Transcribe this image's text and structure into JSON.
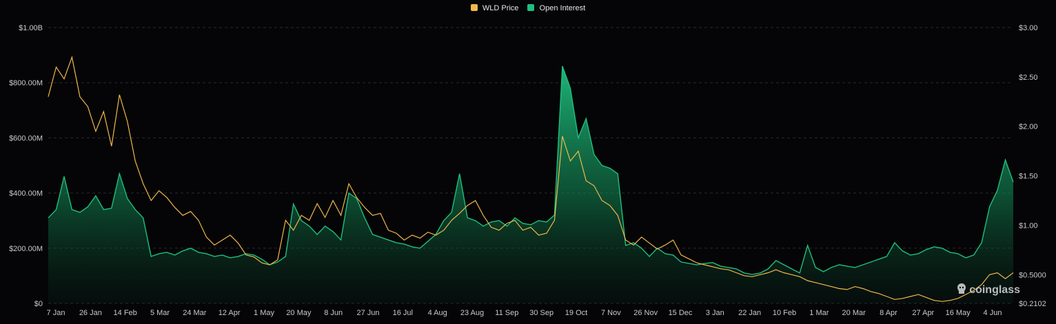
{
  "legend": {
    "price_label": "WLD Price",
    "oi_label": "Open Interest"
  },
  "watermark": {
    "text": "coinglass"
  },
  "colors": {
    "price": "#f0b94b",
    "oi": "#1fbf7f",
    "grid": "#2a2a30",
    "text": "#c9c9cc",
    "background": "#050507"
  },
  "chart_data": {
    "type": "line",
    "title": "",
    "xlabel": "",
    "ylabel_left": "",
    "ylabel_right": "",
    "x_tick_labels": [
      "7 Jan",
      "26 Jan",
      "14 Feb",
      "5 Mar",
      "24 Mar",
      "12 Apr",
      "1 May",
      "20 May",
      "8 Jun",
      "27 Jun",
      "16 Jul",
      "4 Aug",
      "23 Aug",
      "11 Sep",
      "30 Sep",
      "19 Oct",
      "7 Nov",
      "26 Nov",
      "15 Dec",
      "3 Jan",
      "22 Jan",
      "10 Feb",
      "1 Mar",
      "20 Mar",
      "8 Apr",
      "27 Apr",
      "16 May",
      "4 Jun"
    ],
    "left_axis": {
      "ylim": [
        0,
        1000000000
      ],
      "tick_values": [
        0,
        200000000,
        400000000,
        600000000,
        800000000,
        1000000000
      ],
      "tick_labels": [
        "$0",
        "$200.00M",
        "$400.00M",
        "$600.00M",
        "$800.00M",
        "$1.00B"
      ]
    },
    "right_axis": {
      "ylim": [
        0.2102,
        3.0
      ],
      "tick_values": [
        0.2102,
        0.5,
        1.0,
        1.5,
        2.0,
        2.5,
        3.0
      ],
      "tick_labels": [
        "$0.2102",
        "$0.5000",
        "$1.00",
        "$1.50",
        "$2.00",
        "$2.50",
        "$3.00"
      ]
    },
    "grid": true,
    "legend_position": "top-center",
    "series": [
      {
        "name": "WLD Price",
        "axis": "right",
        "style": "line",
        "points": [
          [
            0,
            2.3
          ],
          [
            1,
            2.6
          ],
          [
            2,
            2.48
          ],
          [
            3,
            2.7
          ],
          [
            4,
            2.3
          ],
          [
            5,
            2.2
          ],
          [
            6,
            1.95
          ],
          [
            7,
            2.15
          ],
          [
            8,
            1.8
          ],
          [
            9,
            2.32
          ],
          [
            10,
            2.05
          ],
          [
            11,
            1.65
          ],
          [
            12,
            1.42
          ],
          [
            13,
            1.25
          ],
          [
            14,
            1.35
          ],
          [
            15,
            1.28
          ],
          [
            16,
            1.18
          ],
          [
            17,
            1.1
          ],
          [
            18,
            1.14
          ],
          [
            19,
            1.05
          ],
          [
            20,
            0.88
          ],
          [
            21,
            0.8
          ],
          [
            22,
            0.85
          ],
          [
            23,
            0.9
          ],
          [
            24,
            0.82
          ],
          [
            25,
            0.7
          ],
          [
            26,
            0.68
          ],
          [
            27,
            0.62
          ],
          [
            28,
            0.6
          ],
          [
            29,
            0.65
          ],
          [
            30,
            1.05
          ],
          [
            31,
            0.95
          ],
          [
            32,
            1.1
          ],
          [
            33,
            1.05
          ],
          [
            34,
            1.22
          ],
          [
            35,
            1.08
          ],
          [
            36,
            1.25
          ],
          [
            37,
            1.1
          ],
          [
            38,
            1.42
          ],
          [
            39,
            1.28
          ],
          [
            40,
            1.18
          ],
          [
            41,
            1.1
          ],
          [
            42,
            1.12
          ],
          [
            43,
            0.95
          ],
          [
            44,
            0.92
          ],
          [
            45,
            0.85
          ],
          [
            46,
            0.9
          ],
          [
            47,
            0.87
          ],
          [
            48,
            0.93
          ],
          [
            49,
            0.9
          ],
          [
            50,
            0.95
          ],
          [
            51,
            1.05
          ],
          [
            52,
            1.12
          ],
          [
            53,
            1.2
          ],
          [
            54,
            1.25
          ],
          [
            55,
            1.1
          ],
          [
            56,
            0.98
          ],
          [
            57,
            0.95
          ],
          [
            58,
            1.02
          ],
          [
            59,
            1.05
          ],
          [
            60,
            0.95
          ],
          [
            61,
            0.98
          ],
          [
            62,
            0.9
          ],
          [
            63,
            0.92
          ],
          [
            64,
            1.05
          ],
          [
            65,
            1.9
          ],
          [
            66,
            1.65
          ],
          [
            67,
            1.75
          ],
          [
            68,
            1.45
          ],
          [
            69,
            1.4
          ],
          [
            70,
            1.25
          ],
          [
            71,
            1.2
          ],
          [
            72,
            1.1
          ],
          [
            73,
            0.85
          ],
          [
            74,
            0.8
          ],
          [
            75,
            0.88
          ],
          [
            76,
            0.82
          ],
          [
            77,
            0.76
          ],
          [
            78,
            0.8
          ],
          [
            79,
            0.85
          ],
          [
            80,
            0.7
          ],
          [
            81,
            0.66
          ],
          [
            82,
            0.62
          ],
          [
            83,
            0.6
          ],
          [
            84,
            0.58
          ],
          [
            85,
            0.56
          ],
          [
            86,
            0.55
          ],
          [
            87,
            0.52
          ],
          [
            88,
            0.49
          ],
          [
            89,
            0.48
          ],
          [
            90,
            0.5
          ],
          [
            91,
            0.52
          ],
          [
            92,
            0.55
          ],
          [
            93,
            0.52
          ],
          [
            94,
            0.5
          ],
          [
            95,
            0.48
          ],
          [
            96,
            0.44
          ],
          [
            97,
            0.42
          ],
          [
            98,
            0.4
          ],
          [
            99,
            0.38
          ],
          [
            100,
            0.36
          ],
          [
            101,
            0.35
          ],
          [
            102,
            0.38
          ],
          [
            103,
            0.36
          ],
          [
            104,
            0.33
          ],
          [
            105,
            0.31
          ],
          [
            106,
            0.28
          ],
          [
            107,
            0.25
          ],
          [
            108,
            0.26
          ],
          [
            109,
            0.28
          ],
          [
            110,
            0.3
          ],
          [
            111,
            0.27
          ],
          [
            112,
            0.24
          ],
          [
            113,
            0.23
          ],
          [
            114,
            0.24
          ],
          [
            115,
            0.26
          ],
          [
            116,
            0.3
          ],
          [
            117,
            0.34
          ],
          [
            118,
            0.4
          ],
          [
            119,
            0.5
          ],
          [
            120,
            0.52
          ],
          [
            121,
            0.46
          ],
          [
            122,
            0.52
          ]
        ]
      },
      {
        "name": "Open Interest",
        "axis": "left",
        "style": "area",
        "points": [
          [
            0,
            310000000
          ],
          [
            1,
            340000000
          ],
          [
            2,
            460000000
          ],
          [
            3,
            340000000
          ],
          [
            4,
            330000000
          ],
          [
            5,
            350000000
          ],
          [
            6,
            390000000
          ],
          [
            7,
            340000000
          ],
          [
            8,
            345000000
          ],
          [
            9,
            470000000
          ],
          [
            10,
            380000000
          ],
          [
            11,
            340000000
          ],
          [
            12,
            310000000
          ],
          [
            13,
            170000000
          ],
          [
            14,
            180000000
          ],
          [
            15,
            185000000
          ],
          [
            16,
            175000000
          ],
          [
            17,
            190000000
          ],
          [
            18,
            200000000
          ],
          [
            19,
            185000000
          ],
          [
            20,
            180000000
          ],
          [
            21,
            170000000
          ],
          [
            22,
            175000000
          ],
          [
            23,
            165000000
          ],
          [
            24,
            170000000
          ],
          [
            25,
            180000000
          ],
          [
            26,
            175000000
          ],
          [
            27,
            160000000
          ],
          [
            28,
            140000000
          ],
          [
            29,
            150000000
          ],
          [
            30,
            170000000
          ],
          [
            31,
            360000000
          ],
          [
            32,
            300000000
          ],
          [
            33,
            280000000
          ],
          [
            34,
            250000000
          ],
          [
            35,
            280000000
          ],
          [
            36,
            260000000
          ],
          [
            37,
            230000000
          ],
          [
            38,
            400000000
          ],
          [
            39,
            380000000
          ],
          [
            40,
            310000000
          ],
          [
            41,
            250000000
          ],
          [
            42,
            240000000
          ],
          [
            43,
            230000000
          ],
          [
            44,
            220000000
          ],
          [
            45,
            215000000
          ],
          [
            46,
            205000000
          ],
          [
            47,
            200000000
          ],
          [
            48,
            225000000
          ],
          [
            49,
            250000000
          ],
          [
            50,
            300000000
          ],
          [
            51,
            330000000
          ],
          [
            52,
            470000000
          ],
          [
            53,
            310000000
          ],
          [
            54,
            300000000
          ],
          [
            55,
            280000000
          ],
          [
            56,
            295000000
          ],
          [
            57,
            300000000
          ],
          [
            58,
            280000000
          ],
          [
            59,
            310000000
          ],
          [
            60,
            290000000
          ],
          [
            61,
            285000000
          ],
          [
            62,
            300000000
          ],
          [
            63,
            295000000
          ],
          [
            64,
            320000000
          ],
          [
            65,
            860000000
          ],
          [
            66,
            780000000
          ],
          [
            67,
            600000000
          ],
          [
            68,
            670000000
          ],
          [
            69,
            540000000
          ],
          [
            70,
            500000000
          ],
          [
            71,
            490000000
          ],
          [
            72,
            470000000
          ],
          [
            73,
            210000000
          ],
          [
            74,
            220000000
          ],
          [
            75,
            200000000
          ],
          [
            76,
            170000000
          ],
          [
            77,
            200000000
          ],
          [
            78,
            180000000
          ],
          [
            79,
            175000000
          ],
          [
            80,
            150000000
          ],
          [
            81,
            145000000
          ],
          [
            82,
            140000000
          ],
          [
            83,
            145000000
          ],
          [
            84,
            148000000
          ],
          [
            85,
            135000000
          ],
          [
            86,
            130000000
          ],
          [
            87,
            125000000
          ],
          [
            88,
            110000000
          ],
          [
            89,
            105000000
          ],
          [
            90,
            110000000
          ],
          [
            91,
            125000000
          ],
          [
            92,
            155000000
          ],
          [
            93,
            140000000
          ],
          [
            94,
            125000000
          ],
          [
            95,
            110000000
          ],
          [
            96,
            210000000
          ],
          [
            97,
            130000000
          ],
          [
            98,
            115000000
          ],
          [
            99,
            130000000
          ],
          [
            100,
            140000000
          ],
          [
            101,
            135000000
          ],
          [
            102,
            130000000
          ],
          [
            103,
            140000000
          ],
          [
            104,
            150000000
          ],
          [
            105,
            160000000
          ],
          [
            106,
            170000000
          ],
          [
            107,
            220000000
          ],
          [
            108,
            190000000
          ],
          [
            109,
            175000000
          ],
          [
            110,
            180000000
          ],
          [
            111,
            195000000
          ],
          [
            112,
            205000000
          ],
          [
            113,
            200000000
          ],
          [
            114,
            185000000
          ],
          [
            115,
            180000000
          ],
          [
            116,
            165000000
          ],
          [
            117,
            175000000
          ],
          [
            118,
            220000000
          ],
          [
            119,
            350000000
          ],
          [
            120,
            410000000
          ],
          [
            121,
            520000000
          ],
          [
            122,
            440000000
          ]
        ]
      }
    ]
  }
}
